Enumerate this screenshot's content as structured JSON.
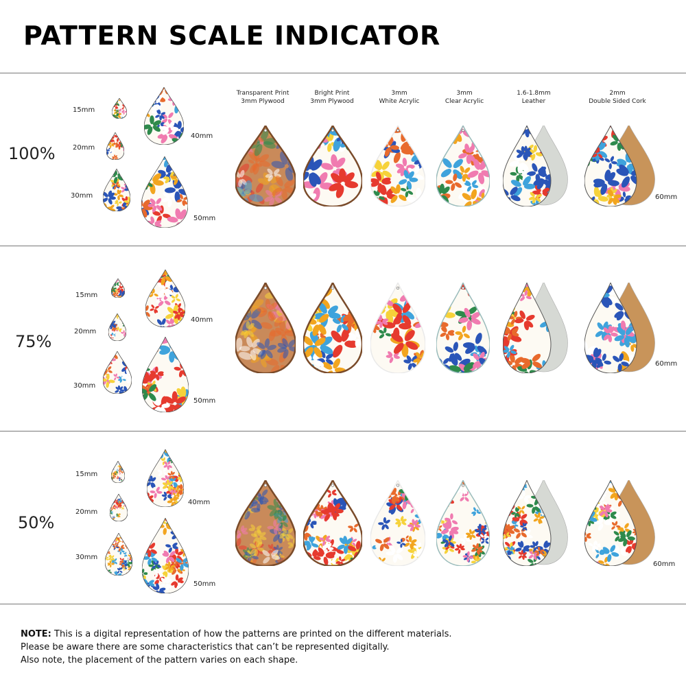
{
  "title": "PATTERN SCALE INDICATOR",
  "materials": [
    {
      "line1": "Transparent Print",
      "line2": "3mm Plywood"
    },
    {
      "line1": "Bright Print",
      "line2": "3mm Plywood"
    },
    {
      "line1": "3mm",
      "line2": "White Acrylic"
    },
    {
      "line1": "3mm",
      "line2": "Clear Acrylic"
    },
    {
      "line1": "1.6-1.8mm",
      "line2": "Leather"
    },
    {
      "line1": "2mm",
      "line2": "Double Sided Cork"
    }
  ],
  "sizes": {
    "s15": "15mm",
    "s20": "20mm",
    "s30": "30mm",
    "s40": "40mm",
    "s50": "50mm",
    "s60": "60mm"
  },
  "sections": [
    {
      "scale": "100%"
    },
    {
      "scale": "75%"
    },
    {
      "scale": "50%"
    }
  ],
  "note": {
    "label": "NOTE:",
    "line1": " This is a digital representation of how the patterns are printed on the different materials.",
    "line2": "Please be aware there are some characteristics that can’t be represented digitally.",
    "line3": "Also note, the placement of the pattern varies on each shape."
  },
  "colors": {
    "palette": [
      "#e63a2e",
      "#f2a51f",
      "#2a55b8",
      "#3fa3dc",
      "#f07bb0",
      "#2e8a4c",
      "#f6d23a",
      "#ffffff",
      "#e86a2c"
    ],
    "leather": "#d6d9d4",
    "cork": "#c8945a",
    "plywood_edge": "#b07a4a"
  }
}
